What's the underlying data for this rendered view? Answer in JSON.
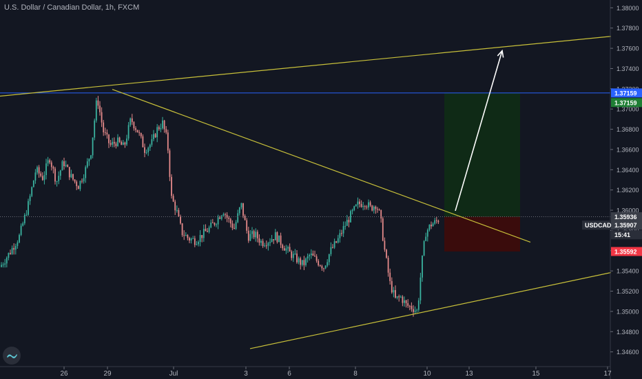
{
  "title": "U.S. Dollar / Canadian Dollar, 1h, FXCM",
  "colors": {
    "background": "#131722",
    "up": "#3bb3a0",
    "down": "#e58a8a",
    "trendline": "#c9c13a",
    "blue_line": "#2962ff",
    "profit_zone": "#0f2a16",
    "loss_zone": "#3a0c0c",
    "arrow": "#ffffff",
    "grid_text": "#b2b5be"
  },
  "chart_data": {
    "type": "candlestick",
    "symbol": "USDCAD",
    "y_ticks": [
      "1.38000",
      "1.37800",
      "1.37600",
      "1.37400",
      "1.37200",
      "1.37000",
      "1.36800",
      "1.36600",
      "1.36400",
      "1.36200",
      "1.36000",
      "1.35800",
      "1.35600",
      "1.35400",
      "1.35200",
      "1.35000",
      "1.34800",
      "1.34600"
    ],
    "x_ticks": [
      "26",
      "29",
      "Jul",
      "3",
      "6",
      "8",
      "10",
      "13",
      "15",
      "17"
    ],
    "ylim": [
      1.3455,
      1.3805
    ],
    "price_tags": [
      {
        "value": "1.37159",
        "label_text": "1.37159",
        "color": "#2962ff",
        "role": "horizontal line"
      },
      {
        "value": "1.37159",
        "label_text": "1.37159",
        "color": "#1e7e34",
        "role": "target"
      },
      {
        "value": "1.35936",
        "label_text": "1.35936",
        "color": "#3a3e48",
        "role": "entry"
      },
      {
        "value": "1.35907",
        "label_text": "1.35907",
        "color": "#3a3e48",
        "role": "last price",
        "symbol_label": "USDCAD"
      },
      {
        "value": "",
        "label_text": "15:41",
        "color": "#2a2e39",
        "role": "countdown"
      },
      {
        "value": "1.35592",
        "label_text": "1.35592",
        "color": "#f23645",
        "role": "stop"
      }
    ],
    "price_path": [
      [
        0,
        1.3544
      ],
      [
        14,
        1.3558
      ],
      [
        28,
        1.3574
      ],
      [
        42,
        1.3608
      ],
      [
        52,
        1.364
      ],
      [
        62,
        1.3632
      ],
      [
        72,
        1.3652
      ],
      [
        82,
        1.3628
      ],
      [
        92,
        1.3648
      ],
      [
        104,
        1.3632
      ],
      [
        114,
        1.3624
      ],
      [
        124,
        1.364
      ],
      [
        132,
        1.3658
      ],
      [
        141,
        1.3712
      ],
      [
        150,
        1.3678
      ],
      [
        160,
        1.3664
      ],
      [
        170,
        1.3668
      ],
      [
        180,
        1.3662
      ],
      [
        190,
        1.369
      ],
      [
        200,
        1.3678
      ],
      [
        210,
        1.366
      ],
      [
        220,
        1.3666
      ],
      [
        228,
        1.368
      ],
      [
        236,
        1.3686
      ],
      [
        243,
        1.3668
      ],
      [
        249,
        1.3612
      ],
      [
        256,
        1.36
      ],
      [
        264,
        1.3578
      ],
      [
        274,
        1.3572
      ],
      [
        284,
        1.357
      ],
      [
        294,
        1.3576
      ],
      [
        304,
        1.3582
      ],
      [
        314,
        1.359
      ],
      [
        324,
        1.36
      ],
      [
        332,
        1.359
      ],
      [
        340,
        1.3582
      ],
      [
        350,
        1.3606
      ],
      [
        360,
        1.3574
      ],
      [
        370,
        1.3576
      ],
      [
        380,
        1.3568
      ],
      [
        390,
        1.357
      ],
      [
        400,
        1.3575
      ],
      [
        410,
        1.3566
      ],
      [
        420,
        1.3558
      ],
      [
        430,
        1.3552
      ],
      [
        440,
        1.3546
      ],
      [
        450,
        1.3556
      ],
      [
        460,
        1.355
      ],
      [
        470,
        1.3544
      ],
      [
        480,
        1.356
      ],
      [
        490,
        1.357
      ],
      [
        500,
        1.3584
      ],
      [
        510,
        1.3596
      ],
      [
        520,
        1.3606
      ],
      [
        530,
        1.3608
      ],
      [
        538,
        1.3602
      ],
      [
        546,
        1.3606
      ],
      [
        552,
        1.3594
      ],
      [
        558,
        1.3562
      ],
      [
        566,
        1.3528
      ],
      [
        574,
        1.3512
      ],
      [
        582,
        1.3514
      ],
      [
        590,
        1.3506
      ],
      [
        598,
        1.3504
      ],
      [
        606,
        1.35
      ],
      [
        612,
        1.3546
      ],
      [
        618,
        1.3578
      ],
      [
        626,
        1.3586
      ],
      [
        632,
        1.3588
      ],
      [
        637,
        1.3591
      ]
    ],
    "trendlines": [
      {
        "x1": -2,
        "y1": 1.37126,
        "x2": 887,
        "y2": 1.37718
      },
      {
        "x1": 163,
        "y1": 1.37194,
        "x2": 770,
        "y2": 1.35684
      },
      {
        "x1": 363,
        "y1": 1.34632,
        "x2": 887,
        "y2": 1.35384
      }
    ],
    "position": {
      "entry": 1.35936,
      "target": 1.37159,
      "stop": 1.35592,
      "x_start": 645,
      "x_end": 755
    },
    "arrow": {
      "x1": 661,
      "y1": 1.35994,
      "x2": 729,
      "y2": 1.37576
    }
  }
}
